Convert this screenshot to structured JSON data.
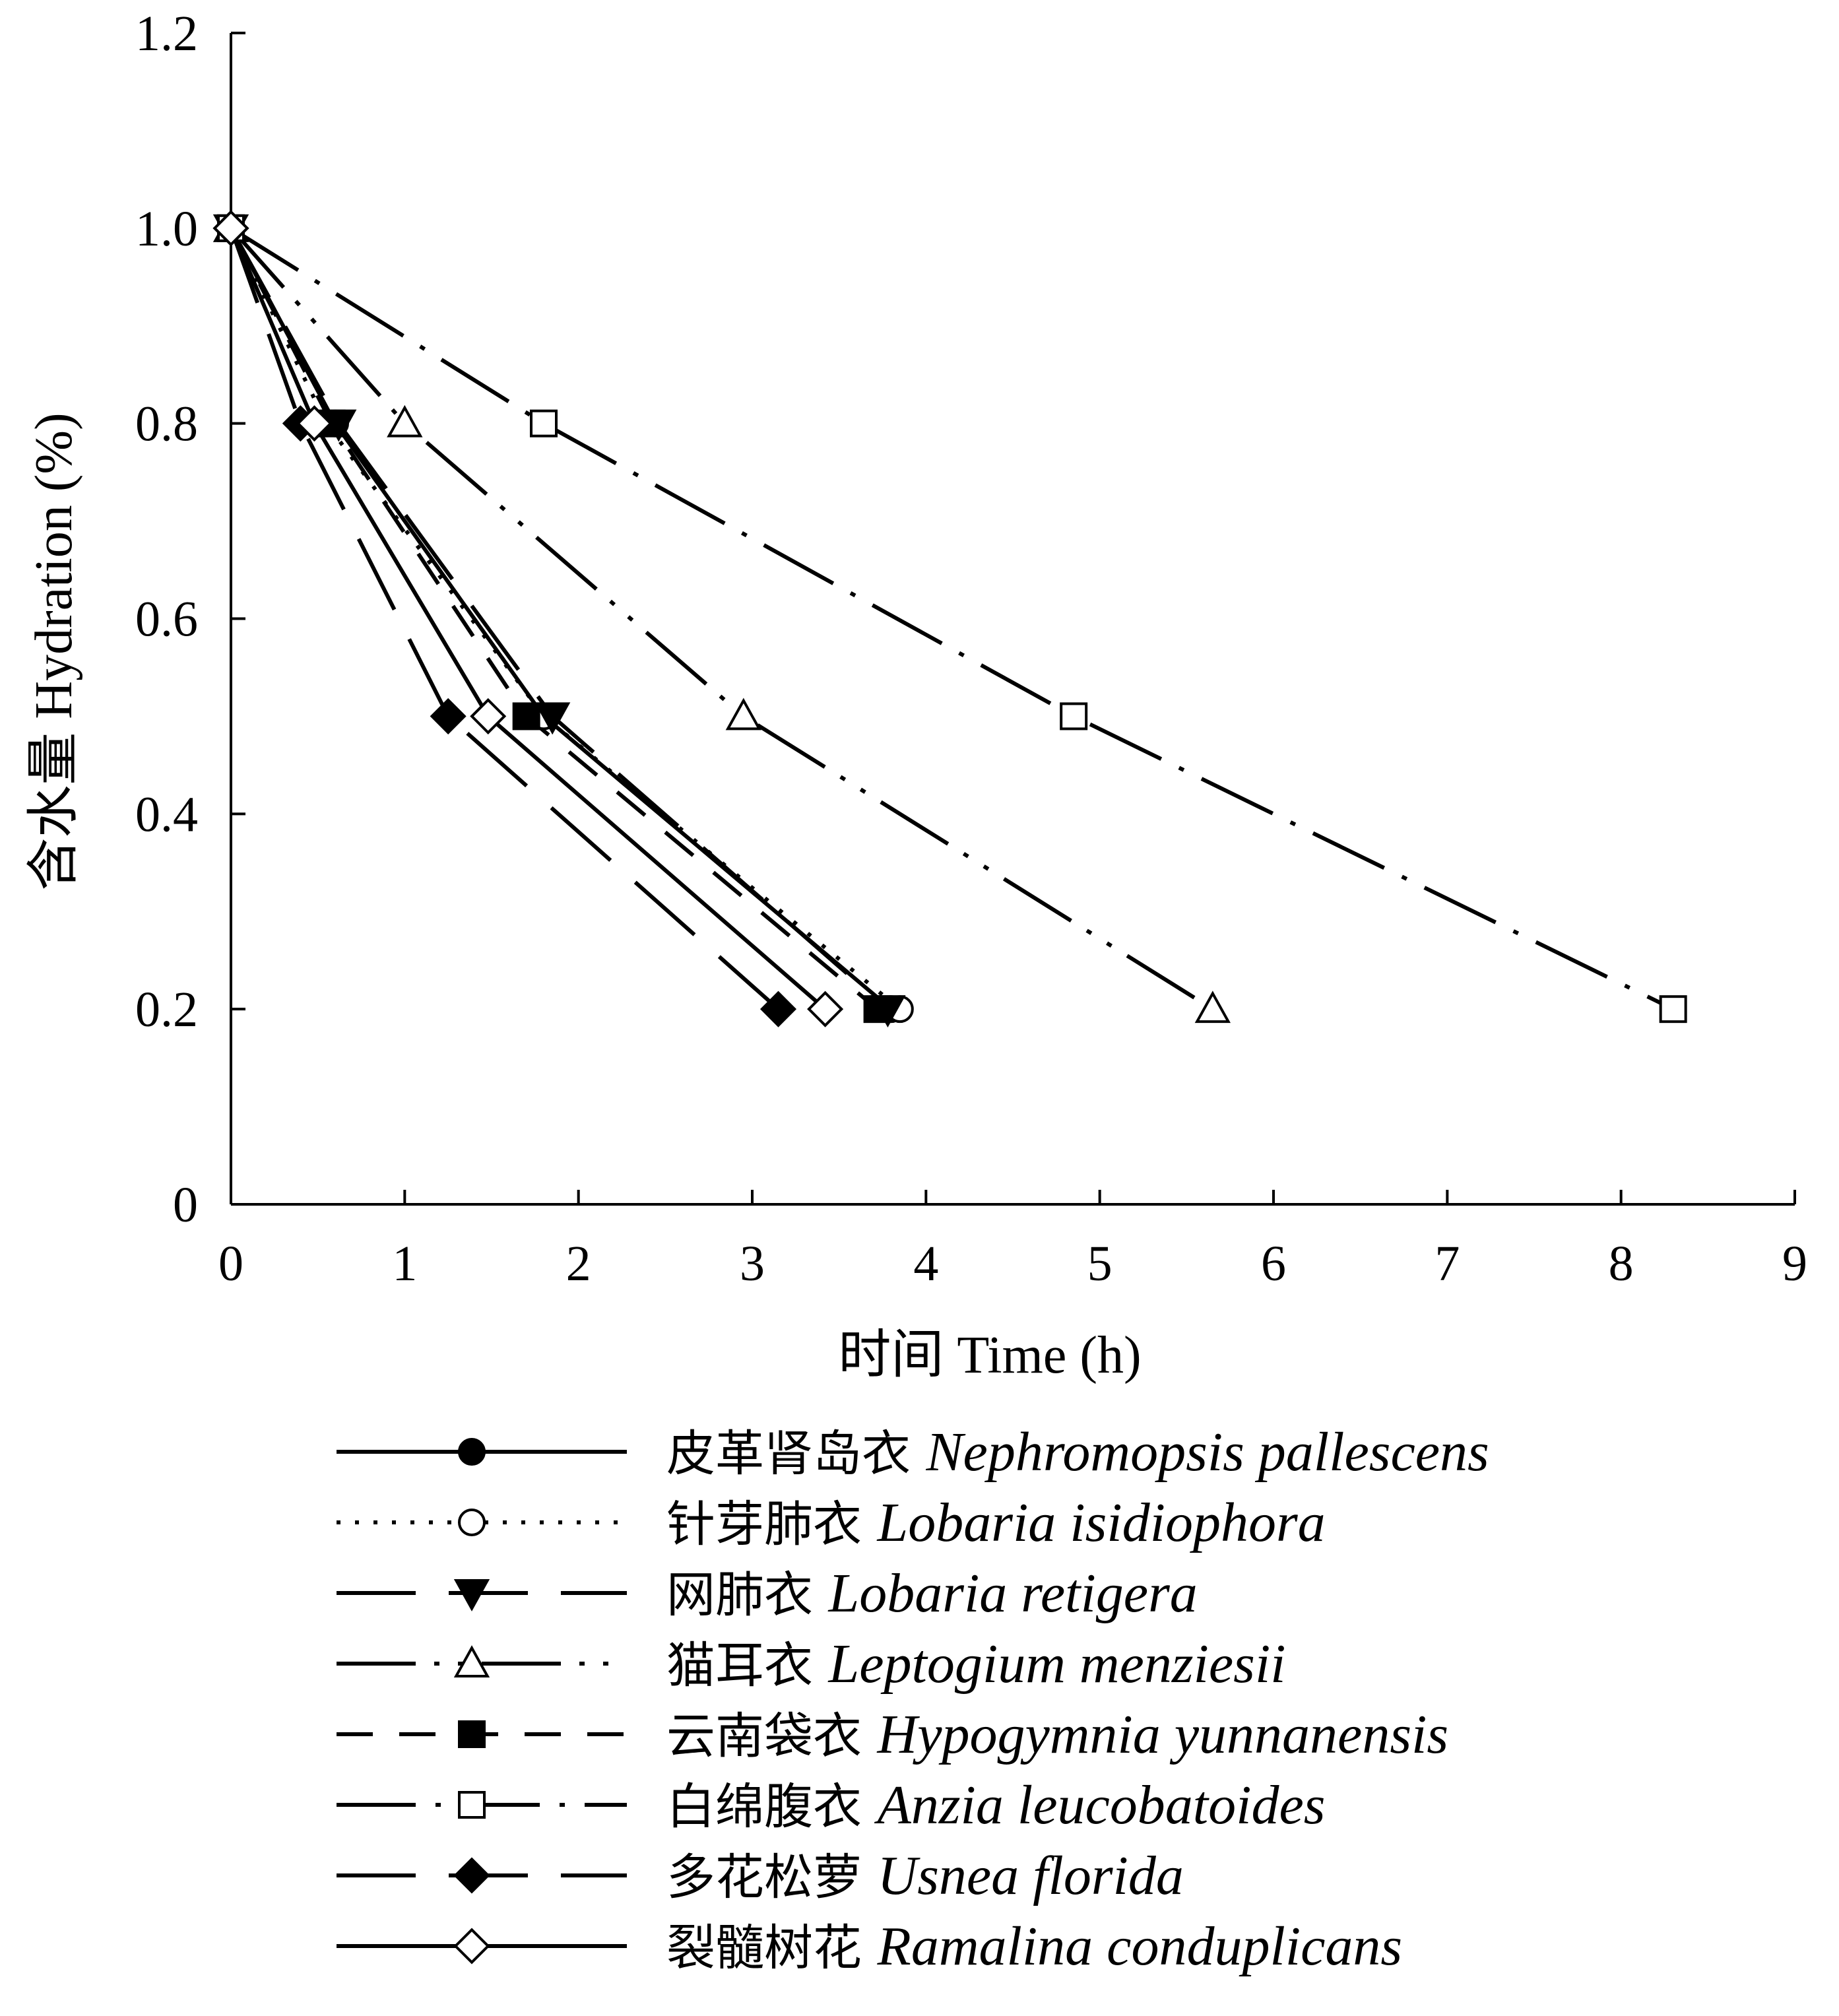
{
  "chart_data": {
    "type": "line",
    "xlabel": "时间  Time (h)",
    "ylabel": "含水量  Hydration (%)",
    "xlim": [
      0,
      9
    ],
    "ylim": [
      0,
      1.2
    ],
    "x_ticks": [
      "0",
      "1",
      "2",
      "3",
      "4",
      "5",
      "6",
      "7",
      "8",
      "9"
    ],
    "y_ticks": [
      "0",
      "0.2",
      "0.4",
      "0.6",
      "0.8",
      "1.0",
      "1.2"
    ],
    "grid": false,
    "legend_position": "bottom",
    "series": [
      {
        "name_zh": "皮革肾岛衣",
        "name_latin": "Nephromopsis pallescens",
        "marker": "circle-filled",
        "dash": "solid",
        "x": [
          0,
          0.6,
          1.8,
          3.8
        ],
        "y": [
          1.0,
          0.8,
          0.5,
          0.2
        ]
      },
      {
        "name_zh": "针芽肺衣",
        "name_latin": "Lobaria isidiophora",
        "marker": "circle-open",
        "dash": "dotted",
        "x": [
          0,
          0.55,
          1.8,
          3.85
        ],
        "y": [
          1.0,
          0.8,
          0.5,
          0.2
        ]
      },
      {
        "name_zh": "网肺衣",
        "name_latin": "Lobaria retigera",
        "marker": "triangle-down-filled",
        "dash": "long-dash",
        "x": [
          0,
          0.62,
          1.85,
          3.78
        ],
        "y": [
          1.0,
          0.8,
          0.5,
          0.2
        ]
      },
      {
        "name_zh": "猫耳衣",
        "name_latin": "Leptogium menziesii",
        "marker": "triangle-up-open",
        "dash": "long-dash-dot-dot",
        "x": [
          0,
          1.0,
          2.95,
          5.65
        ],
        "y": [
          1.0,
          0.8,
          0.5,
          0.2
        ]
      },
      {
        "name_zh": "云南袋衣",
        "name_latin": "Hypogymnia yunnanensis",
        "marker": "square-filled",
        "dash": "dash",
        "x": [
          0,
          0.58,
          1.7,
          3.72
        ],
        "y": [
          1.0,
          0.8,
          0.5,
          0.2
        ]
      },
      {
        "name_zh": "白绵腹衣",
        "name_latin": "Anzia leucobatoides",
        "marker": "square-open",
        "dash": "long-dash-dot",
        "x": [
          0,
          1.8,
          4.85,
          8.3
        ],
        "y": [
          1.0,
          0.8,
          0.5,
          0.2
        ]
      },
      {
        "name_zh": "多花松萝",
        "name_latin": "Usnea florida",
        "marker": "diamond-filled",
        "dash": "long-dash",
        "x": [
          0,
          0.4,
          1.25,
          3.15
        ],
        "y": [
          1.0,
          0.8,
          0.5,
          0.2
        ]
      },
      {
        "name_zh": "裂髓树花",
        "name_latin": "Ramalina conduplicans",
        "marker": "diamond-open",
        "dash": "solid",
        "x": [
          0,
          0.48,
          1.48,
          3.42
        ],
        "y": [
          1.0,
          0.8,
          0.5,
          0.2
        ]
      }
    ]
  }
}
